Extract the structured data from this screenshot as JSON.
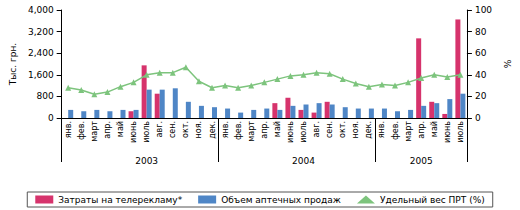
{
  "chart_data": {
    "type": "bar",
    "categories": [
      "янв.",
      "фев.",
      "март",
      "апр.",
      "май",
      "июнь",
      "июль",
      "авг.",
      "сен.",
      "окт.",
      "ноя.",
      "дек.",
      "янв.",
      "фев.",
      "март",
      "апр.",
      "май",
      "июнь",
      "июль",
      "авг.",
      "сен.",
      "окт.",
      "ноя.",
      "дек.",
      "янв.",
      "фев.",
      "март",
      "апр.",
      "май",
      "июнь",
      "июль"
    ],
    "x_groups": [
      "2003",
      "2004",
      "2005"
    ],
    "y_label": "Тыс. грн.",
    "y2_label": "%",
    "ylim": [
      0,
      4000
    ],
    "yticks": [
      0,
      800,
      1600,
      2400,
      3200,
      4000
    ],
    "y2lim": [
      0,
      100
    ],
    "y2ticks": [
      0,
      20,
      40,
      60,
      80,
      100
    ],
    "grid": false,
    "legend": "bottom",
    "series": [
      {
        "name": "Затраты на телерекламу*",
        "type": "bar",
        "color": "#d6336c",
        "values": [
          0,
          0,
          0,
          0,
          0,
          250,
          1950,
          900,
          0,
          0,
          0,
          0,
          0,
          0,
          0,
          0,
          550,
          750,
          300,
          200,
          600,
          0,
          0,
          0,
          0,
          0,
          0,
          2950,
          600,
          150,
          3650
        ]
      },
      {
        "name": "Объем аптечных продаж",
        "type": "bar",
        "color": "#4f86c6",
        "values": [
          300,
          250,
          300,
          250,
          300,
          300,
          1050,
          1050,
          1100,
          600,
          450,
          400,
          350,
          200,
          300,
          350,
          300,
          450,
          500,
          550,
          500,
          400,
          350,
          350,
          350,
          250,
          300,
          450,
          550,
          700,
          900
        ]
      },
      {
        "name": "Удельный вес ПРТ (%)",
        "type": "line",
        "axis": "y2",
        "color": "#7dc47d",
        "marker": "triangle",
        "values": [
          28,
          26,
          22,
          24,
          29,
          33,
          40,
          42,
          42,
          47,
          34,
          28,
          30,
          28,
          30,
          33,
          36,
          39,
          40,
          42,
          41,
          36,
          32,
          29,
          31,
          30,
          33,
          37,
          40,
          38,
          40
        ]
      }
    ]
  }
}
